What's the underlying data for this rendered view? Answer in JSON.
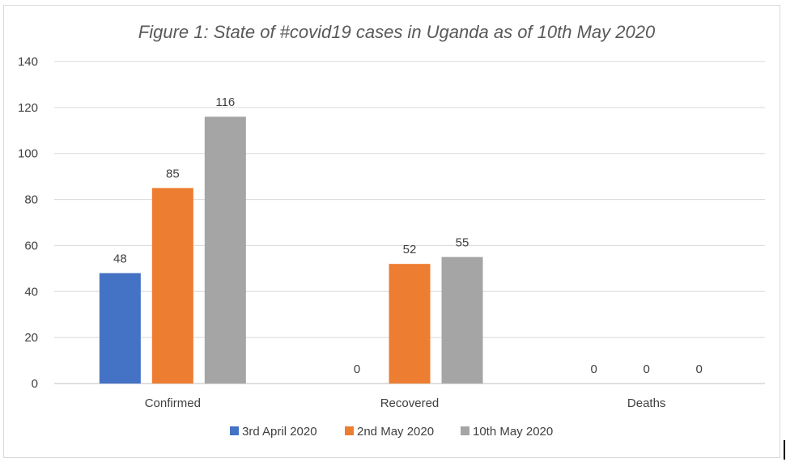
{
  "chart_data": {
    "type": "bar",
    "title": "Figure 1: State of #covid19 cases in Uganda as of 10th May 2020",
    "categories": [
      "Confirmed",
      "Recovered",
      "Deaths"
    ],
    "series": [
      {
        "name": "3rd April 2020",
        "color": "#4472c4",
        "values": [
          48,
          0,
          0
        ]
      },
      {
        "name": "2nd May 2020",
        "color": "#ed7d31",
        "values": [
          85,
          52,
          0
        ]
      },
      {
        "name": "10th May 2020",
        "color": "#a5a5a5",
        "values": [
          116,
          55,
          0
        ]
      }
    ],
    "ylim": [
      0,
      140
    ],
    "yticks": [
      0,
      20,
      40,
      60,
      80,
      100,
      120,
      140
    ],
    "grid": true,
    "legend": "bottom"
  }
}
